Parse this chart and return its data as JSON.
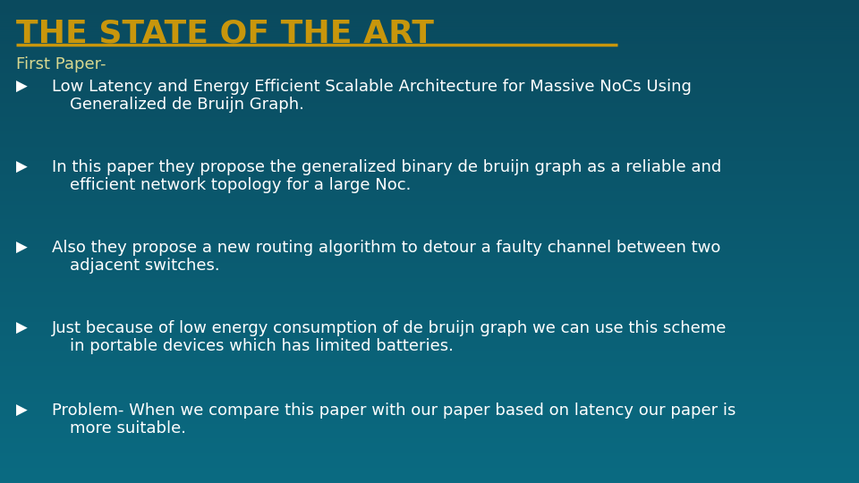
{
  "title": "THE STATE OF THE ART",
  "title_color": "#C8960C",
  "title_underline_color": "#C8960C",
  "background_color_top": "#0A4A5E",
  "background_color_bottom": "#0A6B82",
  "subtitle": "First Paper-",
  "subtitle_color": "#D8D890",
  "text_color": "#FFFFFF",
  "bullets": [
    [
      "Low Latency and Energy Efficient Scalable Architecture for Massive NoCs Using",
      "Generalized de Bruijn Graph."
    ],
    [
      "In this paper they propose the generalized binary de bruijn graph as a reliable and",
      "efficient network topology for a large Noc."
    ],
    [
      "Also they propose a new routing algorithm to detour a faulty channel between two",
      "adjacent switches."
    ],
    [
      "Just because of low energy consumption of de bruijn graph we can use this scheme",
      "in portable devices which has limited batteries."
    ],
    [
      "Problem- When we compare this paper with our paper based on latency our paper is",
      "more suitable."
    ]
  ],
  "title_fontsize": 26,
  "subtitle_fontsize": 13,
  "bullet_fontsize": 13
}
